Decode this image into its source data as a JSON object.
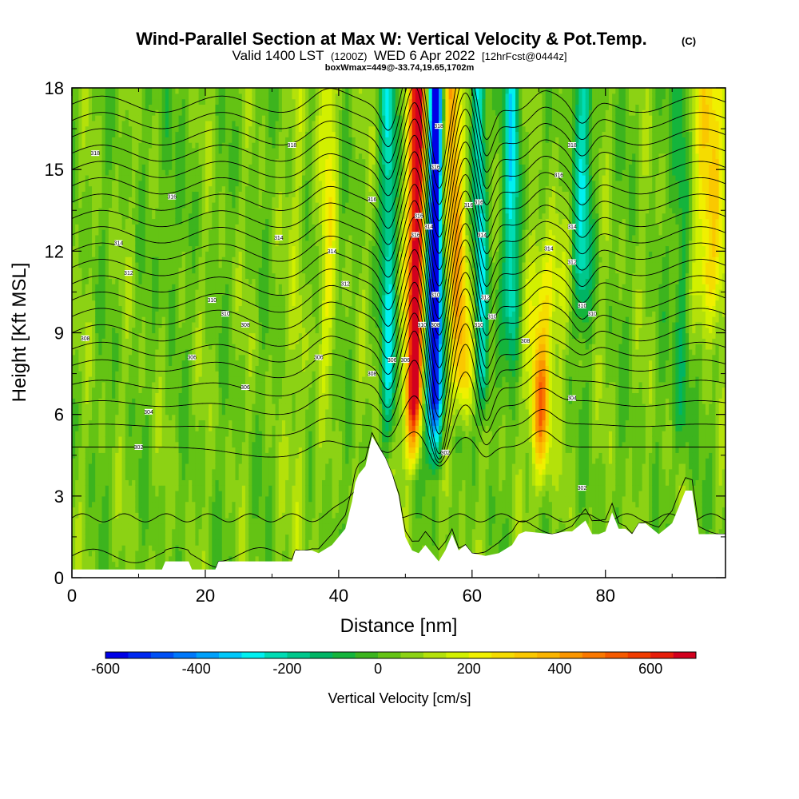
{
  "chart_data": {
    "type": "heatmap",
    "title": "Wind-Parallel Section at Max W: Vertical Velocity & Pot.Temp.",
    "title_mark": "(C)",
    "subtitle_parts": [
      "Valid 1400 LST",
      "(1200Z)",
      "WED 6 Apr 2022",
      "[12hrFcst@0444z]"
    ],
    "box_note": "boxWmax=449@-33.74,19.65,1702m",
    "xlabel": "Distance [nm]",
    "ylabel": "Height [Kft MSL]",
    "xlim": [
      0,
      98
    ],
    "ylim": [
      0,
      18
    ],
    "x_ticks": [
      0,
      20,
      40,
      60,
      80
    ],
    "x_tick_labels": [
      "0",
      "20",
      "40",
      "60",
      "80"
    ],
    "y_ticks": [
      0,
      3,
      6,
      9,
      12,
      15,
      18
    ],
    "y_tick_labels": [
      "0",
      "3",
      "6",
      "9",
      "12",
      "15",
      "18"
    ],
    "colorbar": {
      "label": "Vertical Velocity [cm/s]",
      "min": -600,
      "max": 700,
      "step": 50,
      "tick_values": [
        -600,
        -400,
        -200,
        0,
        200,
        400,
        600
      ],
      "tick_labels": [
        "-600",
        "-400",
        "-200",
        "0",
        "200",
        "400",
        "600"
      ],
      "colors": [
        "#0000e6",
        "#0028f0",
        "#0050f5",
        "#0078fa",
        "#00a0fa",
        "#00c8fa",
        "#00f0f0",
        "#00dcb4",
        "#00c88c",
        "#00b464",
        "#14b43c",
        "#3cb41e",
        "#64c314",
        "#8cd214",
        "#b4e10a",
        "#d2f000",
        "#f0f000",
        "#f5dc00",
        "#fac800",
        "#fab400",
        "#fa9600",
        "#fa7800",
        "#f55a00",
        "#f03c00",
        "#e61e0a",
        "#d2001e"
      ]
    },
    "updraft_cores": [
      {
        "x": 52.0,
        "w": 650,
        "z_range": [
          5,
          18
        ],
        "note": "tilted updraft"
      },
      {
        "x": 54.5,
        "w": -550,
        "z_range": [
          5,
          18
        ],
        "note": "tilted downdraft"
      },
      {
        "x": 58.5,
        "w": 350,
        "z_range": [
          7,
          18
        ]
      },
      {
        "x": 70.5,
        "w": 450,
        "z_range": [
          2,
          10
        ]
      },
      {
        "x": 96.0,
        "w": 250,
        "z_range": [
          9,
          18
        ]
      }
    ],
    "terrain_kft": {
      "x": [
        0,
        13.5,
        14,
        17.5,
        18,
        21.5,
        22,
        33,
        33.5,
        36,
        37,
        39,
        40,
        41,
        42,
        42.5,
        43,
        44,
        45,
        46,
        47,
        48,
        49,
        50,
        51,
        52,
        53,
        54,
        55,
        56,
        57,
        58,
        59,
        60,
        62,
        64,
        66,
        67,
        68,
        72,
        74,
        75,
        77,
        78,
        79,
        80,
        81,
        82,
        83,
        84,
        85,
        86,
        87,
        88,
        89,
        90,
        91,
        92,
        93,
        94,
        95,
        96,
        97,
        98
      ],
      "z": [
        0.3,
        0.3,
        0.6,
        0.6,
        0.3,
        0.3,
        0.6,
        0.6,
        1.0,
        1.0,
        0.9,
        1.2,
        1.5,
        1.8,
        2.8,
        3.5,
        3.8,
        4.1,
        5.2,
        4.8,
        4.4,
        3.8,
        3.0,
        1.5,
        1.0,
        0.9,
        1.2,
        0.9,
        0.6,
        1.0,
        1.6,
        1.0,
        1.2,
        0.9,
        0.8,
        0.9,
        1.2,
        1.6,
        1.7,
        1.6,
        1.7,
        1.7,
        2.1,
        1.6,
        1.6,
        1.7,
        2.4,
        1.8,
        1.8,
        1.6,
        2.0,
        2.0,
        1.8,
        1.6,
        1.8,
        2.0,
        2.6,
        3.2,
        3.2,
        1.6,
        1.6,
        1.6,
        1.6,
        1.6
      ]
    },
    "theta_contour_labels": [
      {
        "x": 3.5,
        "z": 15.6,
        "t": "318"
      },
      {
        "x": 33,
        "z": 15.9,
        "t": "318"
      },
      {
        "x": 15,
        "z": 14.0,
        "t": "316"
      },
      {
        "x": 7,
        "z": 12.3,
        "t": "314"
      },
      {
        "x": 31,
        "z": 12.5,
        "t": "314"
      },
      {
        "x": 8.5,
        "z": 11.2,
        "t": "312"
      },
      {
        "x": 39,
        "z": 12.0,
        "t": "314"
      },
      {
        "x": 21,
        "z": 10.2,
        "t": "310"
      },
      {
        "x": 41,
        "z": 10.8,
        "t": "312"
      },
      {
        "x": 23,
        "z": 9.7,
        "t": "310"
      },
      {
        "x": 26,
        "z": 9.3,
        "t": "308"
      },
      {
        "x": 2,
        "z": 8.8,
        "t": "308"
      },
      {
        "x": 18,
        "z": 8.1,
        "t": "306"
      },
      {
        "x": 37,
        "z": 8.1,
        "t": "306"
      },
      {
        "x": 26,
        "z": 7.0,
        "t": "306"
      },
      {
        "x": 11.5,
        "z": 6.1,
        "t": "304"
      },
      {
        "x": 10,
        "z": 4.8,
        "t": "302"
      },
      {
        "x": 45,
        "z": 13.9,
        "t": "316"
      },
      {
        "x": 45,
        "z": 7.5,
        "t": "308"
      },
      {
        "x": 48,
        "z": 8.0,
        "t": "306"
      },
      {
        "x": 50,
        "z": 8.0,
        "t": "306"
      },
      {
        "x": 52,
        "z": 13.3,
        "t": "316"
      },
      {
        "x": 51.5,
        "z": 12.6,
        "t": "316"
      },
      {
        "x": 53.5,
        "z": 12.9,
        "t": "314"
      },
      {
        "x": 55,
        "z": 16.6,
        "t": "318"
      },
      {
        "x": 54.5,
        "z": 15.1,
        "t": "316"
      },
      {
        "x": 52.5,
        "z": 9.3,
        "t": "310"
      },
      {
        "x": 54.5,
        "z": 10.4,
        "t": "310"
      },
      {
        "x": 54.5,
        "z": 9.3,
        "t": "308"
      },
      {
        "x": 56,
        "z": 4.6,
        "t": "302"
      },
      {
        "x": 59.5,
        "z": 13.7,
        "t": "316"
      },
      {
        "x": 61,
        "z": 13.8,
        "t": "316"
      },
      {
        "x": 61.5,
        "z": 12.6,
        "t": "314"
      },
      {
        "x": 62,
        "z": 10.3,
        "t": "312"
      },
      {
        "x": 63,
        "z": 9.6,
        "t": "310"
      },
      {
        "x": 61,
        "z": 9.3,
        "t": "310"
      },
      {
        "x": 68,
        "z": 8.7,
        "t": "308"
      },
      {
        "x": 71.5,
        "z": 12.1,
        "t": "314"
      },
      {
        "x": 73,
        "z": 14.8,
        "t": "316"
      },
      {
        "x": 75,
        "z": 15.9,
        "t": "318"
      },
      {
        "x": 75,
        "z": 12.9,
        "t": "314"
      },
      {
        "x": 75,
        "z": 11.6,
        "t": "312"
      },
      {
        "x": 76.5,
        "z": 10.0,
        "t": "310"
      },
      {
        "x": 78,
        "z": 9.7,
        "t": "310"
      },
      {
        "x": 75,
        "z": 6.6,
        "t": "304"
      },
      {
        "x": 76.5,
        "z": 3.3,
        "t": "302"
      }
    ],
    "theta_levels": [
      300,
      301,
      302,
      303,
      304,
      305,
      306,
      307,
      308,
      309,
      310,
      311,
      312,
      313,
      314,
      315,
      316,
      317,
      318,
      319,
      320,
      321,
      322
    ],
    "theta_base_heights_kft": [
      0.8,
      2.2,
      4.8,
      5.6,
      6.4,
      7.1,
      7.8,
      8.4,
      9.0,
      9.6,
      10.2,
      10.8,
      11.4,
      12.0,
      12.6,
      13.2,
      13.8,
      14.4,
      15.0,
      15.6,
      16.2,
      16.8,
      17.4
    ]
  }
}
